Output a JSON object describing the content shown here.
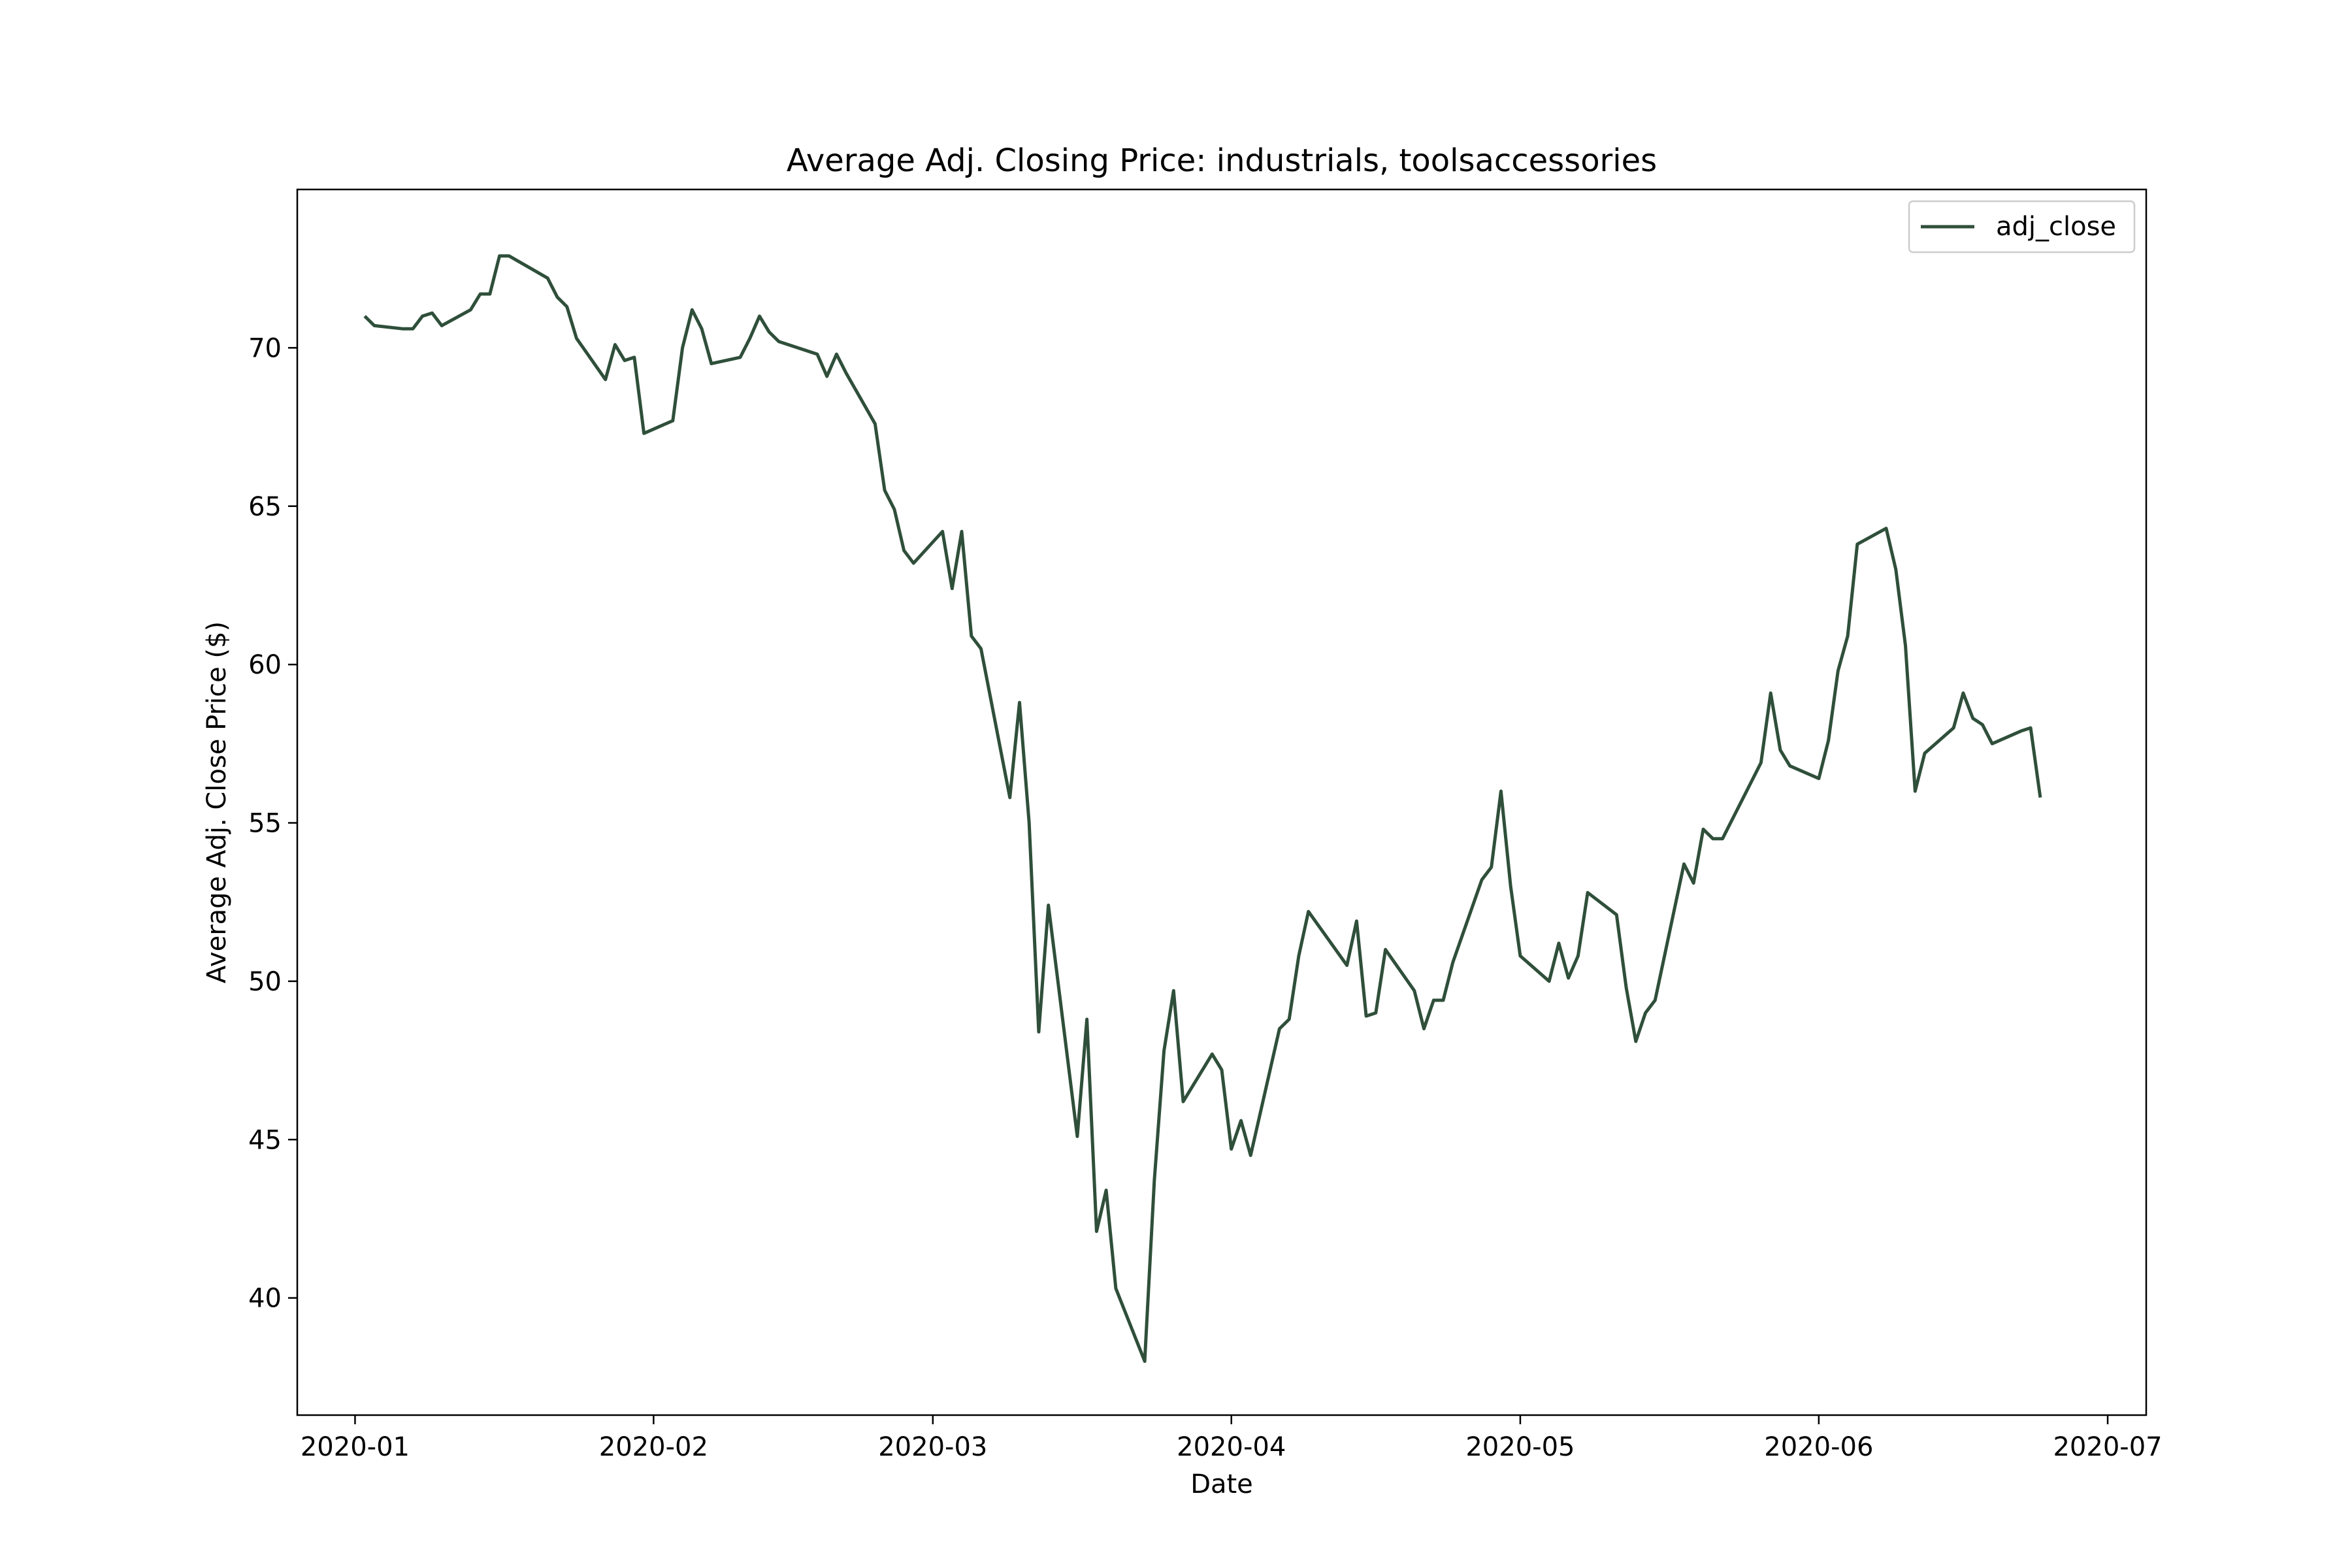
{
  "chart_data": {
    "type": "line",
    "title": "Average Adj. Closing Price: industrials, toolsaccessories",
    "xlabel": "Date",
    "ylabel": "Average Adj. Close Price ($)",
    "xlim": [
      "2019-12-26",
      "2020-07-05"
    ],
    "ylim": [
      36.3,
      75.0
    ],
    "x_ticks": [
      "2020-01-01",
      "2020-02-01",
      "2020-03-01",
      "2020-04-01",
      "2020-05-01",
      "2020-06-01",
      "2020-07-01"
    ],
    "x_tick_labels": [
      "2020-01",
      "2020-02",
      "2020-03",
      "2020-04",
      "2020-05",
      "2020-06",
      "2020-07"
    ],
    "y_ticks": [
      40,
      45,
      50,
      55,
      60,
      65,
      70
    ],
    "y_tick_labels": [
      "40",
      "45",
      "50",
      "55",
      "60",
      "65",
      "70"
    ],
    "grid": false,
    "legend": {
      "position": "top-right",
      "entries": [
        "adj_close"
      ]
    },
    "colors": {
      "line": "#2f4f3a"
    },
    "series": [
      {
        "name": "adj_close",
        "x": [
          "2020-01-02",
          "2020-01-03",
          "2020-01-06",
          "2020-01-07",
          "2020-01-08",
          "2020-01-09",
          "2020-01-10",
          "2020-01-13",
          "2020-01-14",
          "2020-01-15",
          "2020-01-16",
          "2020-01-17",
          "2020-01-21",
          "2020-01-22",
          "2020-01-23",
          "2020-01-24",
          "2020-01-27",
          "2020-01-28",
          "2020-01-29",
          "2020-01-30",
          "2020-01-31",
          "2020-02-03",
          "2020-02-04",
          "2020-02-05",
          "2020-02-06",
          "2020-02-07",
          "2020-02-10",
          "2020-02-11",
          "2020-02-12",
          "2020-02-13",
          "2020-02-14",
          "2020-02-18",
          "2020-02-19",
          "2020-02-20",
          "2020-02-21",
          "2020-02-24",
          "2020-02-25",
          "2020-02-26",
          "2020-02-27",
          "2020-02-28",
          "2020-03-02",
          "2020-03-03",
          "2020-03-04",
          "2020-03-05",
          "2020-03-06",
          "2020-03-09",
          "2020-03-10",
          "2020-03-11",
          "2020-03-12",
          "2020-03-13",
          "2020-03-16",
          "2020-03-17",
          "2020-03-18",
          "2020-03-19",
          "2020-03-20",
          "2020-03-23",
          "2020-03-24",
          "2020-03-25",
          "2020-03-26",
          "2020-03-27",
          "2020-03-30",
          "2020-03-31",
          "2020-04-01",
          "2020-04-02",
          "2020-04-03",
          "2020-04-06",
          "2020-04-07",
          "2020-04-08",
          "2020-04-09",
          "2020-04-13",
          "2020-04-14",
          "2020-04-15",
          "2020-04-16",
          "2020-04-17",
          "2020-04-20",
          "2020-04-21",
          "2020-04-22",
          "2020-04-23",
          "2020-04-24",
          "2020-04-27",
          "2020-04-28",
          "2020-04-29",
          "2020-04-30",
          "2020-05-01",
          "2020-05-04",
          "2020-05-05",
          "2020-05-06",
          "2020-05-07",
          "2020-05-08",
          "2020-05-11",
          "2020-05-12",
          "2020-05-13",
          "2020-05-14",
          "2020-05-15",
          "2020-05-18",
          "2020-05-19",
          "2020-05-20",
          "2020-05-21",
          "2020-05-22",
          "2020-05-26",
          "2020-05-27",
          "2020-05-28",
          "2020-05-29",
          "2020-06-01",
          "2020-06-02",
          "2020-06-03",
          "2020-06-04",
          "2020-06-05",
          "2020-06-08",
          "2020-06-09",
          "2020-06-10",
          "2020-06-11",
          "2020-06-12",
          "2020-06-15",
          "2020-06-16",
          "2020-06-17",
          "2020-06-18",
          "2020-06-19",
          "2020-06-22",
          "2020-06-23",
          "2020-06-24"
        ],
        "values": [
          71.0,
          70.7,
          70.6,
          70.6,
          71.0,
          71.1,
          70.7,
          71.2,
          71.7,
          71.7,
          72.9,
          72.9,
          72.2,
          71.6,
          71.3,
          70.3,
          69.0,
          70.1,
          69.6,
          69.7,
          67.3,
          67.7,
          70.0,
          71.2,
          70.6,
          69.5,
          69.7,
          70.3,
          71.0,
          70.5,
          70.2,
          69.8,
          69.1,
          69.8,
          69.2,
          67.6,
          65.5,
          64.9,
          63.6,
          63.2,
          64.2,
          62.4,
          64.2,
          60.9,
          60.5,
          55.8,
          58.8,
          55.0,
          48.4,
          52.4,
          45.1,
          48.8,
          42.1,
          43.4,
          40.3,
          38.0,
          43.7,
          47.8,
          49.7,
          46.2,
          47.7,
          47.2,
          44.7,
          45.6,
          44.5,
          48.5,
          48.8,
          50.8,
          52.2,
          50.5,
          51.9,
          48.9,
          49.0,
          51.0,
          49.7,
          48.5,
          49.4,
          49.4,
          50.6,
          53.2,
          53.6,
          56.0,
          53.0,
          50.8,
          50.0,
          51.2,
          50.1,
          50.8,
          52.8,
          52.1,
          49.8,
          48.1,
          49.0,
          49.4,
          53.7,
          53.1,
          54.8,
          54.5,
          54.5,
          56.9,
          59.1,
          57.3,
          56.8,
          56.4,
          57.6,
          59.8,
          60.9,
          63.8,
          64.3,
          63.0,
          60.6,
          56.0,
          57.2,
          58.0,
          59.1,
          58.3,
          58.1,
          57.5,
          57.9,
          58.0,
          55.8
        ]
      }
    ]
  }
}
